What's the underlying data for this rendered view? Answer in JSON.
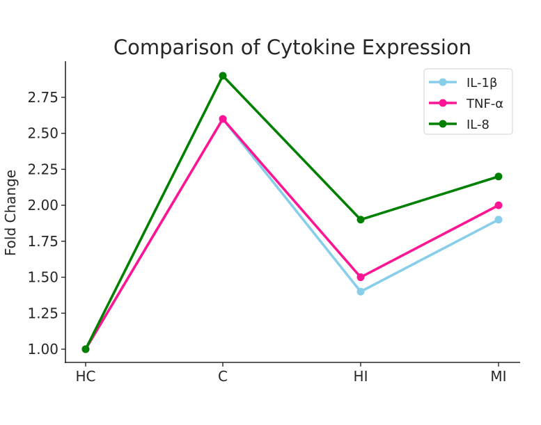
{
  "chart_data": {
    "type": "line",
    "title": "Comparison of Cytokine Expression",
    "xlabel": "",
    "ylabel": "Fold Change",
    "categories": [
      "HC",
      "C",
      "HI",
      "MI"
    ],
    "series": [
      {
        "name": "IL-1β",
        "color": "#87CEEB",
        "values": [
          1.0,
          2.6,
          1.4,
          1.9
        ]
      },
      {
        "name": "TNF-α",
        "color": "#FF1493",
        "values": [
          1.0,
          2.6,
          1.5,
          2.0
        ]
      },
      {
        "name": "IL-8",
        "color": "#008000",
        "values": [
          1.0,
          2.9,
          1.9,
          2.2
        ]
      }
    ],
    "yticks": [
      "1.00",
      "1.25",
      "1.50",
      "1.75",
      "2.00",
      "2.25",
      "2.50",
      "2.75"
    ],
    "ylim": [
      0.91,
      2.95
    ],
    "grid": false,
    "legend_position": "upper right",
    "markers": true
  }
}
